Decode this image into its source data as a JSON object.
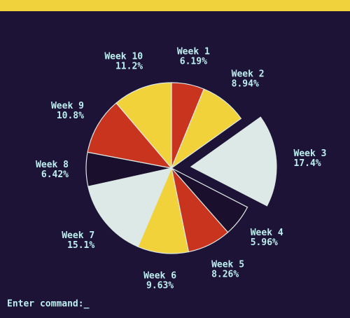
{
  "chart_data": {
    "type": "pie",
    "categories": [
      "Week 1",
      "Week 2",
      "Week 3",
      "Week 4",
      "Week 5",
      "Week 6",
      "Week 7",
      "Week 8",
      "Week 9",
      "Week 10"
    ],
    "values": [
      6.19,
      8.94,
      17.4,
      5.96,
      8.26,
      9.63,
      15.1,
      6.42,
      10.8,
      11.2
    ],
    "value_labels": [
      "6.19%",
      "8.94%",
      "17.4%",
      "5.96%",
      "8.26%",
      "9.63%",
      "15.1%",
      "6.42%",
      "10.8%",
      "11.2%"
    ],
    "colors": [
      "#c9341f",
      "#f2d23a",
      "#dde9e6",
      "#1a0f2c",
      "#c9341f",
      "#f2d23a",
      "#dde9e6",
      "#1a0f2c",
      "#c9341f",
      "#f2d23a"
    ],
    "explode": [
      false,
      false,
      true,
      false,
      false,
      false,
      false,
      false,
      false,
      false
    ]
  },
  "prompt": "Enter command:_"
}
